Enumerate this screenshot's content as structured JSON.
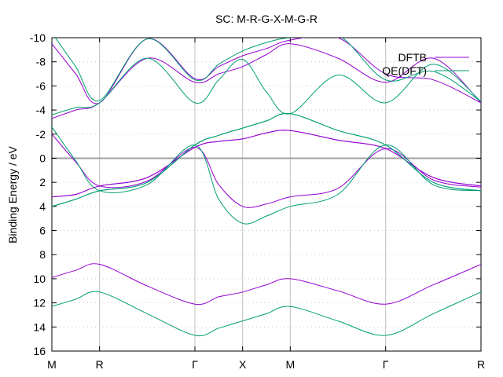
{
  "chart_data": {
    "type": "line",
    "title": "SC: M-R-G-X-M-G-R",
    "xlabel": "",
    "ylabel": "Binding Energy / eV",
    "xlim": [
      0,
      9
    ],
    "ylim": [
      16,
      -10
    ],
    "x_ticks": [
      {
        "x": 0,
        "label": "M"
      },
      {
        "x": 1,
        "label": "R"
      },
      {
        "x": 3,
        "label": "Γ"
      },
      {
        "x": 4,
        "label": "X"
      },
      {
        "x": 5,
        "label": "M"
      },
      {
        "x": 7,
        "label": "Γ"
      },
      {
        "x": 9,
        "label": "R"
      }
    ],
    "y_ticks": [
      -10,
      -8,
      -6,
      -4,
      -2,
      0,
      2,
      4,
      6,
      8,
      10,
      12,
      14,
      16
    ],
    "vertical_grid": [
      1,
      3,
      4,
      5,
      7
    ],
    "zero_line": 0,
    "legend": [
      "DFTB",
      "QE(DFT)"
    ],
    "legend_position": "top-right",
    "colors": {
      "DFTB": "#9400d3",
      "QE(DFT)": "#009e73",
      "zero": "#a0a0a0",
      "grid": "#c0c0c0"
    },
    "series": [
      {
        "name": "DFTB",
        "band": 1,
        "x": [
          0,
          0.5,
          1,
          2,
          3,
          3.5,
          4,
          4.5,
          5,
          6,
          7,
          8,
          9
        ],
        "y": [
          9.9,
          9.3,
          8.8,
          10.6,
          12.1,
          11.5,
          11.1,
          10.5,
          10.0,
          11.0,
          12.1,
          10.5,
          8.8
        ]
      },
      {
        "name": "DFTB",
        "band": 2,
        "x": [
          0,
          0.5,
          1,
          2,
          3,
          3.5,
          4,
          4.5,
          5,
          6,
          7,
          8,
          9
        ],
        "y": [
          3.2,
          3.0,
          2.3,
          1.6,
          -0.9,
          -1.4,
          -1.6,
          -2.1,
          -2.3,
          -1.5,
          -0.8,
          1.6,
          2.3
        ]
      },
      {
        "name": "DFTB",
        "band": 3,
        "x": [
          0,
          0.5,
          1,
          2,
          3,
          3.5,
          4,
          4.5,
          5,
          6,
          7,
          8,
          9
        ],
        "y": [
          3.2,
          3.0,
          2.3,
          1.6,
          -0.9,
          -1.4,
          -1.6,
          -2.1,
          -2.3,
          -1.5,
          -0.8,
          1.6,
          2.3
        ]
      },
      {
        "name": "DFTB",
        "band": 4,
        "x": [
          0,
          0.5,
          1,
          2,
          3,
          3.5,
          4,
          4.5,
          5,
          6,
          7,
          8,
          9
        ],
        "y": [
          -2.0,
          0.3,
          2.3,
          1.9,
          -0.9,
          2.2,
          4.0,
          3.8,
          3.2,
          2.5,
          -0.8,
          1.8,
          2.4
        ]
      },
      {
        "name": "DFTB",
        "band": 5,
        "x": [
          0,
          0.5,
          1,
          2,
          3,
          3.5,
          4,
          4.5,
          5,
          6,
          7,
          8,
          9
        ],
        "y": [
          -3.3,
          -4.0,
          -4.6,
          -8.3,
          -6.3,
          -7.0,
          -7.6,
          -8.6,
          -9.5,
          -8.3,
          -6.3,
          -8.3,
          -4.6
        ]
      },
      {
        "name": "DFTB",
        "band": 6,
        "x": [
          0,
          0.5,
          1,
          2,
          3,
          3.5,
          4,
          4.5,
          5,
          6,
          7,
          8,
          9
        ],
        "y": [
          -9.5,
          -7.0,
          -4.6,
          -9.9,
          -6.6,
          -7.6,
          -8.5,
          -9.1,
          -9.8,
          -10.0,
          -7.0,
          -6.5,
          -4.6
        ]
      },
      {
        "name": "QE(DFT)",
        "band": 1,
        "x": [
          0,
          0.5,
          1,
          2,
          3,
          3.5,
          4,
          4.5,
          5,
          6,
          7,
          8,
          9
        ],
        "y": [
          12.3,
          11.7,
          11.1,
          12.9,
          14.7,
          14.1,
          13.5,
          12.9,
          12.3,
          13.5,
          14.7,
          12.9,
          11.1
        ]
      },
      {
        "name": "QE(DFT)",
        "band": 2,
        "x": [
          0,
          0.5,
          1,
          2,
          3,
          3.5,
          4,
          4.5,
          5,
          6,
          7,
          8,
          9
        ],
        "y": [
          4.0,
          3.4,
          2.7,
          2.0,
          -1.1,
          -1.9,
          -2.5,
          -3.1,
          -3.7,
          -2.3,
          -1.1,
          2.0,
          2.7
        ]
      },
      {
        "name": "QE(DFT)",
        "band": 3,
        "x": [
          0,
          0.5,
          1,
          2,
          3,
          3.5,
          4,
          4.5,
          5,
          6,
          7,
          8,
          9
        ],
        "y": [
          4.0,
          3.4,
          2.7,
          2.0,
          -1.1,
          -1.9,
          -2.5,
          -3.1,
          -3.7,
          -2.3,
          -1.1,
          2.0,
          2.7
        ]
      },
      {
        "name": "QE(DFT)",
        "band": 4,
        "x": [
          0,
          0.5,
          1,
          2,
          3,
          3.5,
          4,
          4.5,
          5,
          6,
          7,
          8,
          9
        ],
        "y": [
          -2.6,
          0.2,
          2.7,
          2.2,
          -1.1,
          3.4,
          5.4,
          4.8,
          4.0,
          3.0,
          -1.1,
          2.2,
          2.7
        ]
      },
      {
        "name": "QE(DFT)",
        "band": 5,
        "x": [
          0,
          0.5,
          1,
          2,
          3,
          3.5,
          4,
          4.5,
          5,
          6,
          7,
          8,
          9
        ],
        "y": [
          -3.6,
          -4.2,
          -4.6,
          -8.3,
          -4.6,
          -6.5,
          -8.2,
          -5.5,
          -3.7,
          -6.9,
          -4.6,
          -7.8,
          -4.7
        ]
      },
      {
        "name": "QE(DFT)",
        "band": 6,
        "x": [
          0,
          0.5,
          1,
          2,
          3,
          3.5,
          4,
          4.5,
          5,
          6,
          7,
          8,
          9
        ],
        "y": [
          -10.4,
          -7.6,
          -4.8,
          -9.9,
          -6.5,
          -7.8,
          -8.9,
          -9.6,
          -10.0,
          -10.2,
          -6.5,
          -7.2,
          -4.7
        ]
      }
    ]
  }
}
